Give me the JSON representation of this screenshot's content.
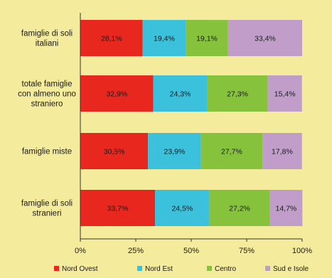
{
  "chart_data": {
    "type": "bar",
    "orientation": "horizontal",
    "stacked": true,
    "categories": [
      [
        "famiglie di soli",
        "italiani"
      ],
      [
        "totale famiglie",
        "con almeno uno",
        "straniero"
      ],
      [
        "famiglie miste"
      ],
      [
        "famiglie di soli",
        "stranieri"
      ]
    ],
    "series": [
      {
        "name": "Nord Ovest",
        "color": "#e8271f",
        "values": [
          28.1,
          32.9,
          30.5,
          33.7
        ],
        "labels": [
          "28,1%",
          "32,9%",
          "30,5%",
          "33,7%"
        ]
      },
      {
        "name": "Nord Est",
        "color": "#3cc1dc",
        "values": [
          19.4,
          24.3,
          23.9,
          24.5
        ],
        "labels": [
          "19,4%",
          "24,3%",
          "23,9%",
          "24,5%"
        ]
      },
      {
        "name": "Centro",
        "color": "#86c23c",
        "values": [
          19.1,
          27.3,
          27.7,
          27.2
        ],
        "labels": [
          "19,1%",
          "27,3%",
          "27,7%",
          "27,2%"
        ]
      },
      {
        "name": "Sud e Isole",
        "color": "#c09ec9",
        "values": [
          33.4,
          15.4,
          17.8,
          14.7
        ],
        "labels": [
          "33,4%",
          "15,4%",
          "17,8%",
          "14,7%"
        ]
      }
    ],
    "x_ticks": [
      "0%",
      "25%",
      "50%",
      "75%",
      "100%"
    ],
    "xlim": [
      0,
      100
    ],
    "grid": false,
    "legend_position": "bottom"
  }
}
